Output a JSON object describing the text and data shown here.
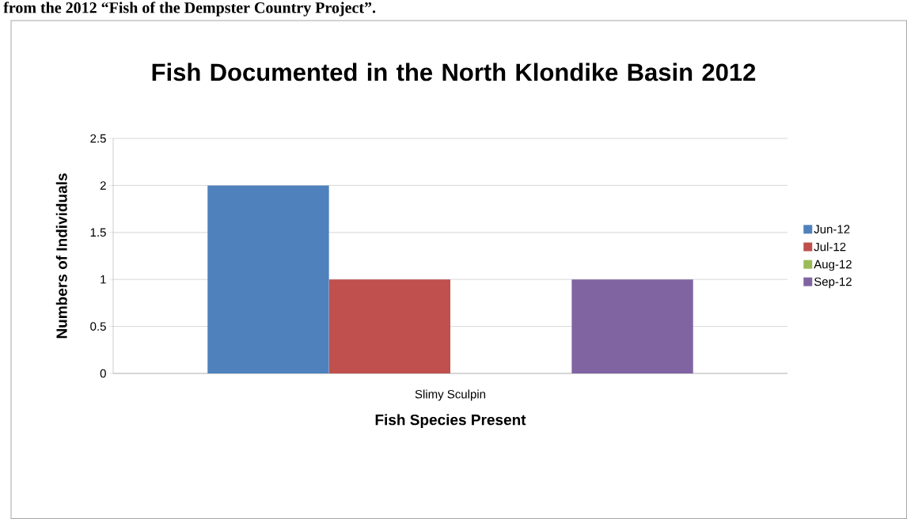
{
  "chart_data": {
    "type": "bar",
    "title": "Fish Documented in the North Klondike Basin 2012",
    "xlabel": "Fish Species Present",
    "ylabel": "Numbers of Individuals",
    "annotations": [
      "from the 2012 “Fish of the Dempster Country Project”."
    ],
    "categories": [
      "Slimy Sculpin"
    ],
    "series": [
      {
        "name": "Jun-12",
        "color": "#4f81bd",
        "values": [
          2
        ]
      },
      {
        "name": "Jul-12",
        "color": "#c0504d",
        "values": [
          1
        ]
      },
      {
        "name": "Aug-12",
        "color": "#9bbb59",
        "values": [
          0
        ]
      },
      {
        "name": "Sep-12",
        "color": "#8064a2",
        "values": [
          1
        ]
      }
    ],
    "ylim": [
      0,
      2.5
    ],
    "yticks": [
      0,
      0.5,
      1,
      1.5,
      2,
      2.5
    ],
    "grid": "y",
    "legend": "right"
  }
}
